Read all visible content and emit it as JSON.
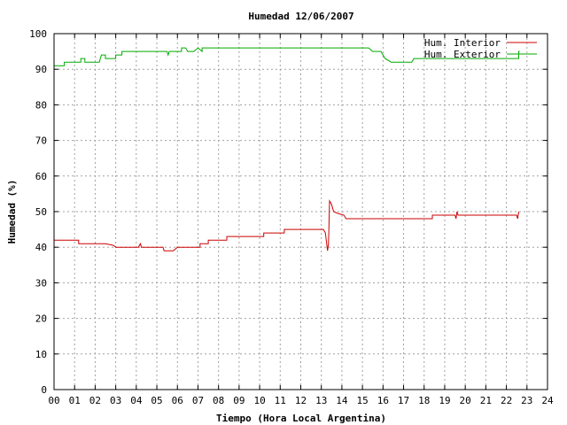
{
  "chart_data": {
    "type": "line",
    "title": "Humedad 12/06/2007",
    "xlabel": "Tiempo (Hora Local Argentina)",
    "ylabel": "Humedad (%)",
    "xlim": [
      0,
      24
    ],
    "ylim": [
      0,
      100
    ],
    "x_ticks": [
      "00",
      "01",
      "02",
      "03",
      "04",
      "05",
      "06",
      "07",
      "08",
      "09",
      "10",
      "11",
      "12",
      "13",
      "14",
      "15",
      "16",
      "17",
      "18",
      "19",
      "20",
      "21",
      "22",
      "23",
      "24"
    ],
    "y_ticks": [
      "0",
      "10",
      "20",
      "30",
      "40",
      "50",
      "60",
      "70",
      "80",
      "90",
      "100"
    ],
    "grid": true,
    "legend_position": "top-right",
    "series": [
      {
        "name": "Hum. Interior",
        "color": "#cc0000",
        "points": [
          [
            0.0,
            42
          ],
          [
            1.2,
            42
          ],
          [
            1.2,
            41
          ],
          [
            2.5,
            41
          ],
          [
            2.9,
            40.5
          ],
          [
            3.0,
            40
          ],
          [
            4.1,
            40
          ],
          [
            4.2,
            41
          ],
          [
            4.25,
            40
          ],
          [
            5.3,
            40
          ],
          [
            5.35,
            39
          ],
          [
            5.8,
            39
          ],
          [
            6.0,
            40
          ],
          [
            7.1,
            40
          ],
          [
            7.1,
            41
          ],
          [
            7.5,
            41
          ],
          [
            7.5,
            42
          ],
          [
            8.4,
            42
          ],
          [
            8.4,
            43
          ],
          [
            10.2,
            43
          ],
          [
            10.2,
            44
          ],
          [
            11.2,
            44
          ],
          [
            11.2,
            45
          ],
          [
            13.1,
            45
          ],
          [
            13.2,
            44
          ],
          [
            13.3,
            39
          ],
          [
            13.35,
            41
          ],
          [
            13.4,
            53
          ],
          [
            13.5,
            52
          ],
          [
            13.6,
            50
          ],
          [
            13.8,
            49.5
          ],
          [
            14.1,
            49
          ],
          [
            14.2,
            48
          ],
          [
            18.4,
            48
          ],
          [
            18.4,
            49
          ],
          [
            19.5,
            49
          ],
          [
            19.55,
            48
          ],
          [
            19.6,
            50
          ],
          [
            19.65,
            49
          ],
          [
            22.5,
            49
          ],
          [
            22.55,
            48
          ],
          [
            22.6,
            50
          ],
          [
            22.6,
            50
          ]
        ]
      },
      {
        "name": "Hum. Exterior",
        "color": "#00aa00",
        "points": [
          [
            0.0,
            91
          ],
          [
            0.5,
            91
          ],
          [
            0.5,
            92
          ],
          [
            1.3,
            92
          ],
          [
            1.3,
            93
          ],
          [
            1.5,
            93
          ],
          [
            1.5,
            92
          ],
          [
            2.2,
            92
          ],
          [
            2.3,
            94
          ],
          [
            2.5,
            94
          ],
          [
            2.5,
            93
          ],
          [
            3.0,
            93
          ],
          [
            3.0,
            94
          ],
          [
            3.3,
            94
          ],
          [
            3.3,
            95
          ],
          [
            5.5,
            95
          ],
          [
            5.55,
            94
          ],
          [
            5.6,
            95
          ],
          [
            6.2,
            95
          ],
          [
            6.2,
            96
          ],
          [
            6.4,
            96
          ],
          [
            6.5,
            95
          ],
          [
            6.8,
            95
          ],
          [
            7.0,
            96
          ],
          [
            7.2,
            95
          ],
          [
            7.2,
            96
          ],
          [
            15.3,
            96
          ],
          [
            15.5,
            95
          ],
          [
            15.9,
            95
          ],
          [
            16.1,
            93
          ],
          [
            16.4,
            92
          ],
          [
            17.4,
            92
          ],
          [
            17.5,
            93
          ],
          [
            22.6,
            93
          ],
          [
            22.6,
            95
          ],
          [
            22.65,
            95
          ]
        ]
      }
    ]
  }
}
